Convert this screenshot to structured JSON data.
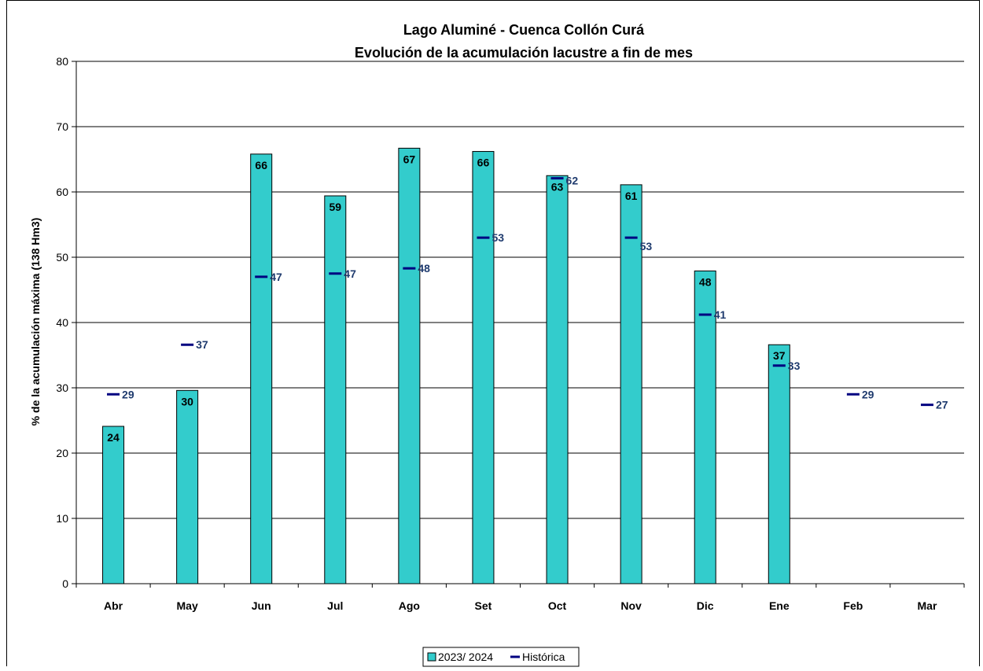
{
  "chart_data": {
    "type": "bar",
    "title": "Lago Aluminé - Cuenca Collón Curá",
    "subtitle": "Evolución de la acumulación lacustre a fin de mes",
    "xlabel": "",
    "ylabel": "% de la acumulación máxima (138 Hm3)",
    "ylim": [
      0,
      80
    ],
    "yticks": [
      "0",
      "10",
      "20",
      "30",
      "40",
      "50",
      "60",
      "70",
      "80"
    ],
    "grid": true,
    "legend_position": "bottom",
    "categories": [
      "Abr",
      "May",
      "Jun",
      "Jul",
      "Ago",
      "Set",
      "Oct",
      "Nov",
      "Dic",
      "Ene",
      "Feb",
      "Mar"
    ],
    "series": [
      {
        "name": "2023/ 2024",
        "kind": "bar",
        "color": "#33cccc",
        "values": [
          24.1,
          29.6,
          65.8,
          59.4,
          66.7,
          66.2,
          62.5,
          61.1,
          47.9,
          36.6,
          null,
          null
        ],
        "labels": [
          "24",
          "30",
          "66",
          "59",
          "67",
          "66",
          "63",
          "61",
          "48",
          "37",
          "",
          ""
        ]
      },
      {
        "name": "Histórica",
        "kind": "marker",
        "color": "#000080",
        "label_color": "#1f3b6e",
        "values": [
          29.0,
          36.6,
          47.0,
          47.5,
          48.3,
          53.0,
          62.1,
          53.0,
          41.2,
          33.4,
          29.0,
          27.4
        ],
        "labels": [
          "29",
          "37",
          "47",
          "47",
          "48",
          "53",
          "62",
          "53",
          "41",
          "33",
          "29",
          "27"
        ]
      }
    ]
  }
}
